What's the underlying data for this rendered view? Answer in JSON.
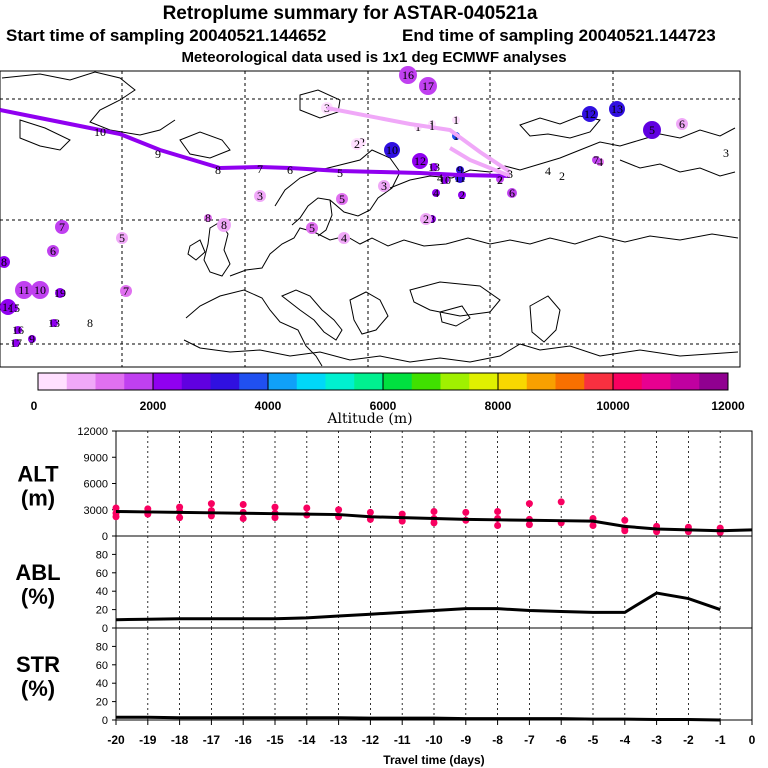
{
  "header": {
    "title": "Retroplume summary for ASTAR-040521a",
    "start_label": "Start time of sampling 20040521.144652",
    "end_label": "End time of sampling 20040521.144723",
    "met_label": "Meteorological data used is 1x1 deg ECMWF analyses"
  },
  "colorbar": {
    "title": "Altitude (m)",
    "tick_labels": [
      "0",
      "2000",
      "4000",
      "6000",
      "8000",
      "10000",
      "12000"
    ],
    "colors": [
      "#ffe0ff",
      "#f0a8f8",
      "#e070f0",
      "#c040f0",
      "#9000f0",
      "#6000e0",
      "#3010e0",
      "#2050f0",
      "#10a0f8",
      "#00d8f8",
      "#00f0d0",
      "#00f090",
      "#00e040",
      "#40e000",
      "#a0f000",
      "#e0f000",
      "#f8d800",
      "#f8a000",
      "#f87000",
      "#f83040",
      "#f80060",
      "#e80090",
      "#c000a0",
      "#900090"
    ]
  },
  "map": {
    "track": [
      {
        "label": "1",
        "color": "#f0a8f8"
      },
      {
        "label": "2",
        "color": "#f0a8f8"
      },
      {
        "label": "3",
        "color": "#9000f0"
      },
      {
        "label": "4",
        "color": "#9000f0"
      },
      {
        "label": "5",
        "color": "#9000f0"
      },
      {
        "label": "6",
        "color": "#9000f0"
      },
      {
        "label": "7",
        "color": "#9000f0"
      },
      {
        "label": "8",
        "color": "#9000f0"
      },
      {
        "label": "9",
        "color": "#9000f0"
      },
      {
        "label": "10",
        "color": "#9000f0"
      }
    ],
    "clusters": [
      {
        "label": "16",
        "color": "#c040f0"
      },
      {
        "label": "17",
        "color": "#c040f0"
      },
      {
        "label": "1",
        "color": "#ffe0ff"
      },
      {
        "label": "1",
        "color": "#ffe0ff"
      },
      {
        "label": "1",
        "color": "#ffe0ff"
      },
      {
        "label": "1",
        "color": "#2050f0"
      },
      {
        "label": "12",
        "color": "#3010e0"
      },
      {
        "label": "13",
        "color": "#3010e0"
      },
      {
        "label": "5",
        "color": "#6000e0"
      },
      {
        "label": "6",
        "color": "#f0a8f8"
      },
      {
        "label": "10",
        "color": "#3010e0"
      },
      {
        "label": "3",
        "color": "#ffe0ff"
      },
      {
        "label": "2",
        "color": "#ffe0ff"
      },
      {
        "label": "2",
        "color": "#ffe0ff"
      },
      {
        "label": "3",
        "color": "#f0a8f8"
      },
      {
        "label": "12",
        "color": "#9000f0"
      },
      {
        "label": "13",
        "color": "#9000f0"
      },
      {
        "label": "9",
        "color": "#3010e0"
      },
      {
        "label": "11",
        "color": "#3010e0"
      },
      {
        "label": "10",
        "color": "#9000f0"
      },
      {
        "label": "2",
        "color": "#9000f0"
      },
      {
        "label": "4",
        "color": "#9000f0"
      },
      {
        "label": "3",
        "color": "#f0a8f8"
      },
      {
        "label": "5",
        "color": "#e070f0"
      },
      {
        "label": "8",
        "color": "#9000f0"
      },
      {
        "label": "6",
        "color": "#c040f0"
      },
      {
        "label": "7",
        "color": "#c040f0"
      },
      {
        "label": "3",
        "color": "#ffffff"
      },
      {
        "label": "4",
        "color": "#ffffff"
      },
      {
        "label": "2",
        "color": "#ffffff"
      },
      {
        "label": "4",
        "color": "#e070f0"
      },
      {
        "label": "7",
        "color": "#c040f0"
      },
      {
        "label": "2",
        "color": "#f0a8f8"
      },
      {
        "label": "8",
        "color": "#f0a8f8"
      },
      {
        "label": "8",
        "color": "#e070f0"
      },
      {
        "label": "5",
        "color": "#e070f0"
      },
      {
        "label": "4",
        "color": "#f0a8f8"
      },
      {
        "label": "7",
        "color": "#c040f0"
      },
      {
        "label": "6",
        "color": "#c040f0"
      },
      {
        "label": "5",
        "color": "#f0a8f8"
      },
      {
        "label": "8",
        "color": "#9000f0"
      },
      {
        "label": "11",
        "color": "#c040f0"
      },
      {
        "label": "10",
        "color": "#c040f0"
      },
      {
        "label": "19",
        "color": "#9000f0"
      },
      {
        "label": "7",
        "color": "#e070f0"
      },
      {
        "label": "13",
        "color": "#9000f0"
      },
      {
        "label": "14",
        "color": "#9000f0"
      },
      {
        "label": "15",
        "color": "#9000f0"
      },
      {
        "label": "8",
        "color": "#ffffff"
      },
      {
        "label": "16",
        "color": "#9000f0"
      },
      {
        "label": "17",
        "color": "#9000f0"
      },
      {
        "label": "9",
        "color": "#9000f0"
      }
    ]
  },
  "chart_data": {
    "type": "line",
    "x": [
      -20,
      -19,
      -18,
      -17,
      -16,
      -15,
      -14,
      -13,
      -12,
      -11,
      -10,
      -9,
      -8,
      -7,
      -6,
      -5,
      -4,
      -3,
      -2,
      -1,
      0
    ],
    "xlabel": "Travel time (days)",
    "xlim": [
      -20,
      0
    ],
    "xtick_labels": [
      "-20",
      "-19",
      "-18",
      "-17",
      "-16",
      "-15",
      "-14",
      "-13",
      "-12",
      "-11",
      "-10",
      "-9",
      "-8",
      "-7",
      "-6",
      "-5",
      "-4",
      "-3",
      "-2",
      "-1",
      "0"
    ],
    "panels": [
      {
        "name": "ALT",
        "unit": "(m)",
        "ylim": [
          0,
          12000
        ],
        "ytick_labels": [
          "0",
          "3000",
          "6000",
          "9000",
          "12000"
        ],
        "mean": [
          2800,
          2750,
          2700,
          2650,
          2600,
          2550,
          2500,
          2450,
          2200,
          2100,
          2000,
          1900,
          1850,
          1800,
          1750,
          1700,
          1100,
          800,
          700,
          600,
          700
        ],
        "scatter_color": "#f80060",
        "scatter": [
          {
            "x": -20,
            "y": 3200
          },
          {
            "x": -20,
            "y": 2600
          },
          {
            "x": -20,
            "y": 2200
          },
          {
            "x": -19,
            "y": 3100
          },
          {
            "x": -19,
            "y": 2500
          },
          {
            "x": -18,
            "y": 3300
          },
          {
            "x": -18,
            "y": 2800
          },
          {
            "x": -18,
            "y": 2100
          },
          {
            "x": -17,
            "y": 3700
          },
          {
            "x": -17,
            "y": 2900
          },
          {
            "x": -17,
            "y": 2300
          },
          {
            "x": -16,
            "y": 3600
          },
          {
            "x": -16,
            "y": 2700
          },
          {
            "x": -16,
            "y": 2000
          },
          {
            "x": -15,
            "y": 3300
          },
          {
            "x": -15,
            "y": 2600
          },
          {
            "x": -15,
            "y": 2100
          },
          {
            "x": -14,
            "y": 3200
          },
          {
            "x": -14,
            "y": 2400
          },
          {
            "x": -13,
            "y": 3000
          },
          {
            "x": -13,
            "y": 2200
          },
          {
            "x": -12,
            "y": 2700
          },
          {
            "x": -12,
            "y": 1900
          },
          {
            "x": -11,
            "y": 2500
          },
          {
            "x": -11,
            "y": 1700
          },
          {
            "x": -10,
            "y": 2800
          },
          {
            "x": -10,
            "y": 2000
          },
          {
            "x": -10,
            "y": 1500
          },
          {
            "x": -9,
            "y": 2700
          },
          {
            "x": -9,
            "y": 1800
          },
          {
            "x": -8,
            "y": 2800
          },
          {
            "x": -8,
            "y": 2000
          },
          {
            "x": -8,
            "y": 1200
          },
          {
            "x": -7,
            "y": 3700
          },
          {
            "x": -7,
            "y": 1900
          },
          {
            "x": -7,
            "y": 1300
          },
          {
            "x": -6,
            "y": 3900
          },
          {
            "x": -6,
            "y": 1500
          },
          {
            "x": -5,
            "y": 2000
          },
          {
            "x": -5,
            "y": 1200
          },
          {
            "x": -4,
            "y": 1800
          },
          {
            "x": -4,
            "y": 900
          },
          {
            "x": -4,
            "y": 600
          },
          {
            "x": -3,
            "y": 1100
          },
          {
            "x": -3,
            "y": 500
          },
          {
            "x": -2,
            "y": 1000
          },
          {
            "x": -2,
            "y": 500
          },
          {
            "x": -1,
            "y": 900
          },
          {
            "x": -1,
            "y": 400
          }
        ]
      },
      {
        "name": "ABL",
        "unit": "(%)",
        "ylim": [
          0,
          100
        ],
        "ytick_labels": [
          "0",
          "20",
          "40",
          "60",
          "80"
        ],
        "mean": [
          9,
          9.5,
          10,
          10,
          10,
          10,
          11,
          13,
          15,
          17,
          19,
          21,
          21,
          19,
          18,
          17,
          17,
          38,
          32,
          20,
          null
        ]
      },
      {
        "name": "STR",
        "unit": "(%)",
        "ylim": [
          0,
          100
        ],
        "ytick_labels": [
          "0",
          "20",
          "40",
          "60",
          "80"
        ],
        "mean": [
          3,
          3,
          2.5,
          2.5,
          2.5,
          2.5,
          2.5,
          2.5,
          2,
          2,
          2,
          1.5,
          1.5,
          1.5,
          1.5,
          1,
          1,
          0.5,
          0.5,
          0,
          null
        ]
      }
    ]
  }
}
